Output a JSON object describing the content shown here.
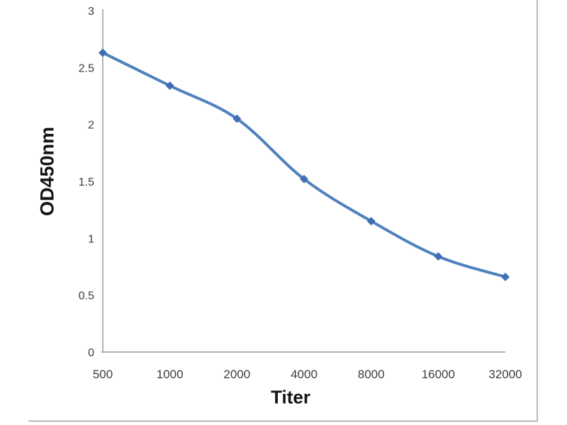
{
  "figure": {
    "background": "#ffffff",
    "border_color": "#a3a3a3"
  },
  "chart_data": {
    "type": "line",
    "title": "",
    "xlabel": "Titer",
    "ylabel": "OD450nm",
    "categories": [
      "500",
      "1000",
      "2000",
      "4000",
      "8000",
      "16000",
      "32000"
    ],
    "series": [
      {
        "name": "OD450nm vs Titer",
        "values": [
          2.63,
          2.34,
          2.05,
          1.52,
          1.15,
          0.84,
          0.66
        ],
        "line_color": "#4f81bd",
        "marker": "diamond",
        "marker_color": "#3f6eb2",
        "smooth": true
      }
    ],
    "ylim": [
      0,
      3
    ],
    "yticks": [
      "0",
      "0.5",
      "1",
      "1.5",
      "2",
      "2.5",
      "3"
    ],
    "grid": false,
    "legend_position": "none",
    "axis_color": "#9a9a9a",
    "tick_label_color": "#3d3d3d"
  }
}
